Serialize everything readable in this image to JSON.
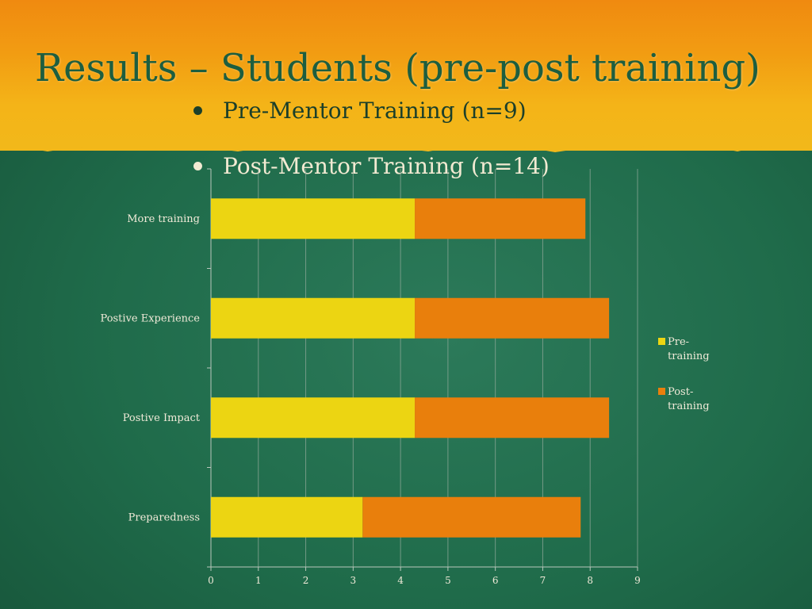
{
  "slide": {
    "title": "Results – Students (pre-post training)",
    "bullets": [
      "Pre-Mentor Training (n=9)",
      "Post-Mentor Training (n=14)"
    ]
  },
  "colors": {
    "pre": "#ecd512",
    "post": "#e97f0c",
    "header_text": "#1d5e3f"
  },
  "chart_data": {
    "type": "bar",
    "orientation": "horizontal",
    "stacked": true,
    "categories": [
      "More training",
      "Postive Experience",
      "Postive Impact",
      "Preparedness"
    ],
    "series": [
      {
        "name": "Pre-training",
        "values": [
          4.3,
          4.3,
          4.3,
          3.2
        ]
      },
      {
        "name": "Post-training",
        "values": [
          3.6,
          4.1,
          4.1,
          4.6
        ]
      }
    ],
    "xlim": [
      0,
      9
    ],
    "xticks": [
      0,
      1,
      2,
      3,
      4,
      5,
      6,
      7,
      8,
      9
    ],
    "grid": true,
    "legend": "right"
  }
}
